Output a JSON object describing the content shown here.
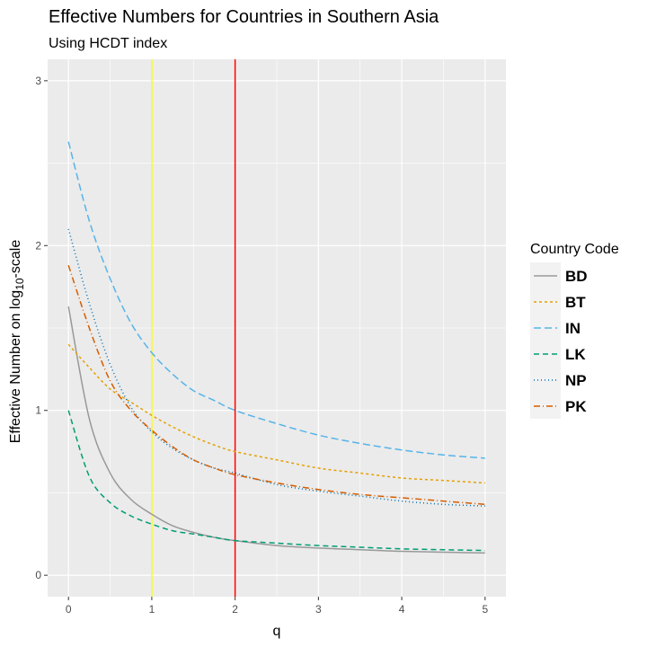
{
  "chart_data": {
    "type": "line",
    "title": "Effective Numbers for Countries in Southern Asia",
    "subtitle": "Using HCDT index",
    "xlabel": "q",
    "ylabel_main": "Effective Number on log",
    "ylabel_sub": "10",
    "ylabel_end": "-scale",
    "xlim": [
      -0.25,
      5.25
    ],
    "ylim": [
      -0.13,
      3.13
    ],
    "x_ticks": [
      0,
      1,
      2,
      3,
      4,
      5
    ],
    "y_ticks": [
      0,
      1,
      2,
      3
    ],
    "grid": true,
    "vlines": [
      {
        "x": 1,
        "color": "#ffff00"
      },
      {
        "x": 2,
        "color": "#ff0000"
      }
    ],
    "legend": {
      "title": "Country Code",
      "position": "right"
    },
    "x": [
      0,
      0.25,
      0.5,
      0.75,
      1,
      1.25,
      1.5,
      1.75,
      2,
      2.5,
      3,
      3.5,
      4,
      4.5,
      5
    ],
    "series": [
      {
        "name": "BD",
        "color": "#999999",
        "dash": "",
        "values": [
          1.63,
          0.95,
          0.62,
          0.46,
          0.37,
          0.3,
          0.26,
          0.23,
          0.21,
          0.18,
          0.165,
          0.155,
          0.145,
          0.14,
          0.135
        ]
      },
      {
        "name": "BT",
        "color": "#E69F00",
        "dash": "3,3",
        "values": [
          1.4,
          1.26,
          1.13,
          1.05,
          0.97,
          0.9,
          0.84,
          0.79,
          0.75,
          0.7,
          0.65,
          0.62,
          0.59,
          0.575,
          0.56
        ]
      },
      {
        "name": "IN",
        "color": "#56B4E9",
        "dash": "8,4",
        "values": [
          2.63,
          2.15,
          1.8,
          1.53,
          1.35,
          1.22,
          1.12,
          1.06,
          1.0,
          0.92,
          0.85,
          0.8,
          0.76,
          0.73,
          0.71
        ]
      },
      {
        "name": "LK",
        "color": "#009E73",
        "dash": "6,4",
        "values": [
          1.0,
          0.6,
          0.44,
          0.36,
          0.31,
          0.27,
          0.25,
          0.23,
          0.21,
          0.195,
          0.18,
          0.17,
          0.16,
          0.155,
          0.15
        ]
      },
      {
        "name": "NP",
        "color": "#0072B2",
        "dash": "1,3",
        "values": [
          2.1,
          1.65,
          1.28,
          1.02,
          0.87,
          0.77,
          0.7,
          0.65,
          0.62,
          0.55,
          0.51,
          0.48,
          0.45,
          0.43,
          0.42
        ]
      },
      {
        "name": "PK",
        "color": "#D55E00",
        "dash": "7,3,1,3",
        "values": [
          1.88,
          1.5,
          1.18,
          1.0,
          0.88,
          0.78,
          0.7,
          0.65,
          0.61,
          0.56,
          0.52,
          0.49,
          0.47,
          0.45,
          0.43
        ]
      }
    ]
  }
}
